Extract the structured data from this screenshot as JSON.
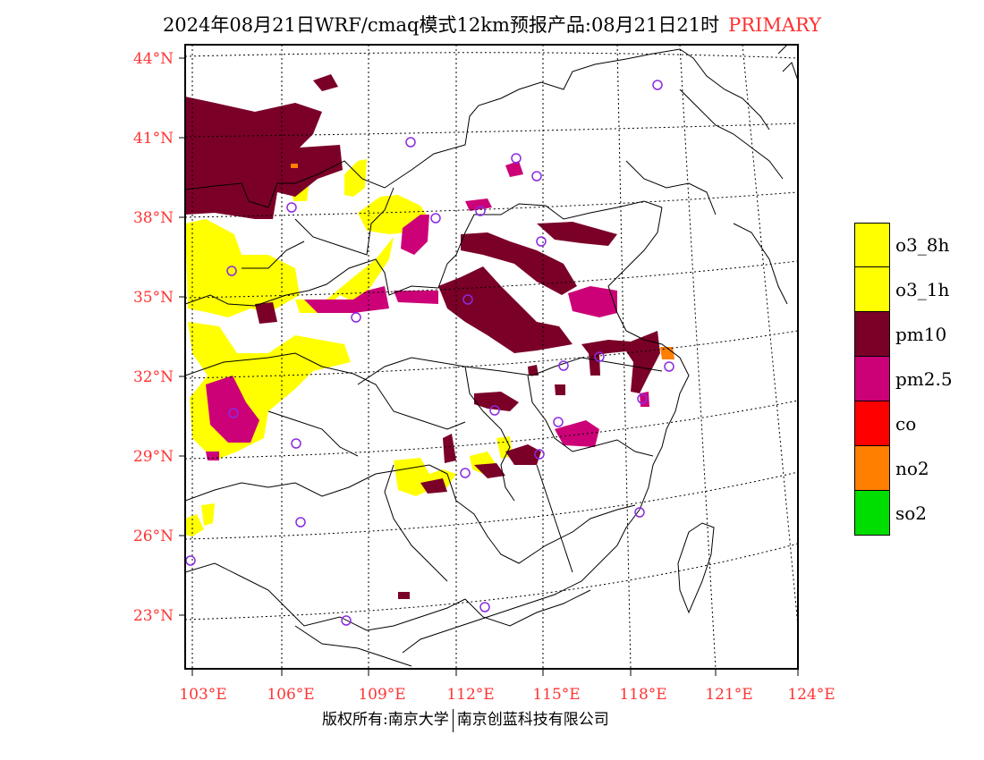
{
  "title": "2024年08月21日WRF/cmaq模式12km预报产品:08月21日21时",
  "primary_label": "PRIMARY",
  "lat_ticks": [
    "44°N",
    "41°N",
    "38°N",
    "35°N",
    "32°N",
    "29°N",
    "26°N",
    "23°N"
  ],
  "lon_ticks": [
    "103°E",
    "106°E",
    "109°E",
    "112°E",
    "115°E",
    "118°E",
    "121°E",
    "124°E"
  ],
  "legend": [
    {
      "label": "o3_8h",
      "color": "#ffff00"
    },
    {
      "label": "o3_1h",
      "color": "#ffff00"
    },
    {
      "label": "pm10",
      "color": "#7a0028"
    },
    {
      "label": "pm2.5",
      "color": "#cc0077"
    },
    {
      "label": "co",
      "color": "#ff0000"
    },
    {
      "label": "no2",
      "color": "#ff7f00"
    },
    {
      "label": "so2",
      "color": "#00dd00"
    }
  ],
  "colors": {
    "pm10": "#7a0028",
    "pm25": "#cc0077",
    "o3": "#ffff00",
    "no2": "#ff7f00",
    "station": "#8a2be2",
    "tick": "#ff3333"
  },
  "footer_left": "版权所有:南京大学",
  "footer_right": "南京创蓝科技有限公司"
}
